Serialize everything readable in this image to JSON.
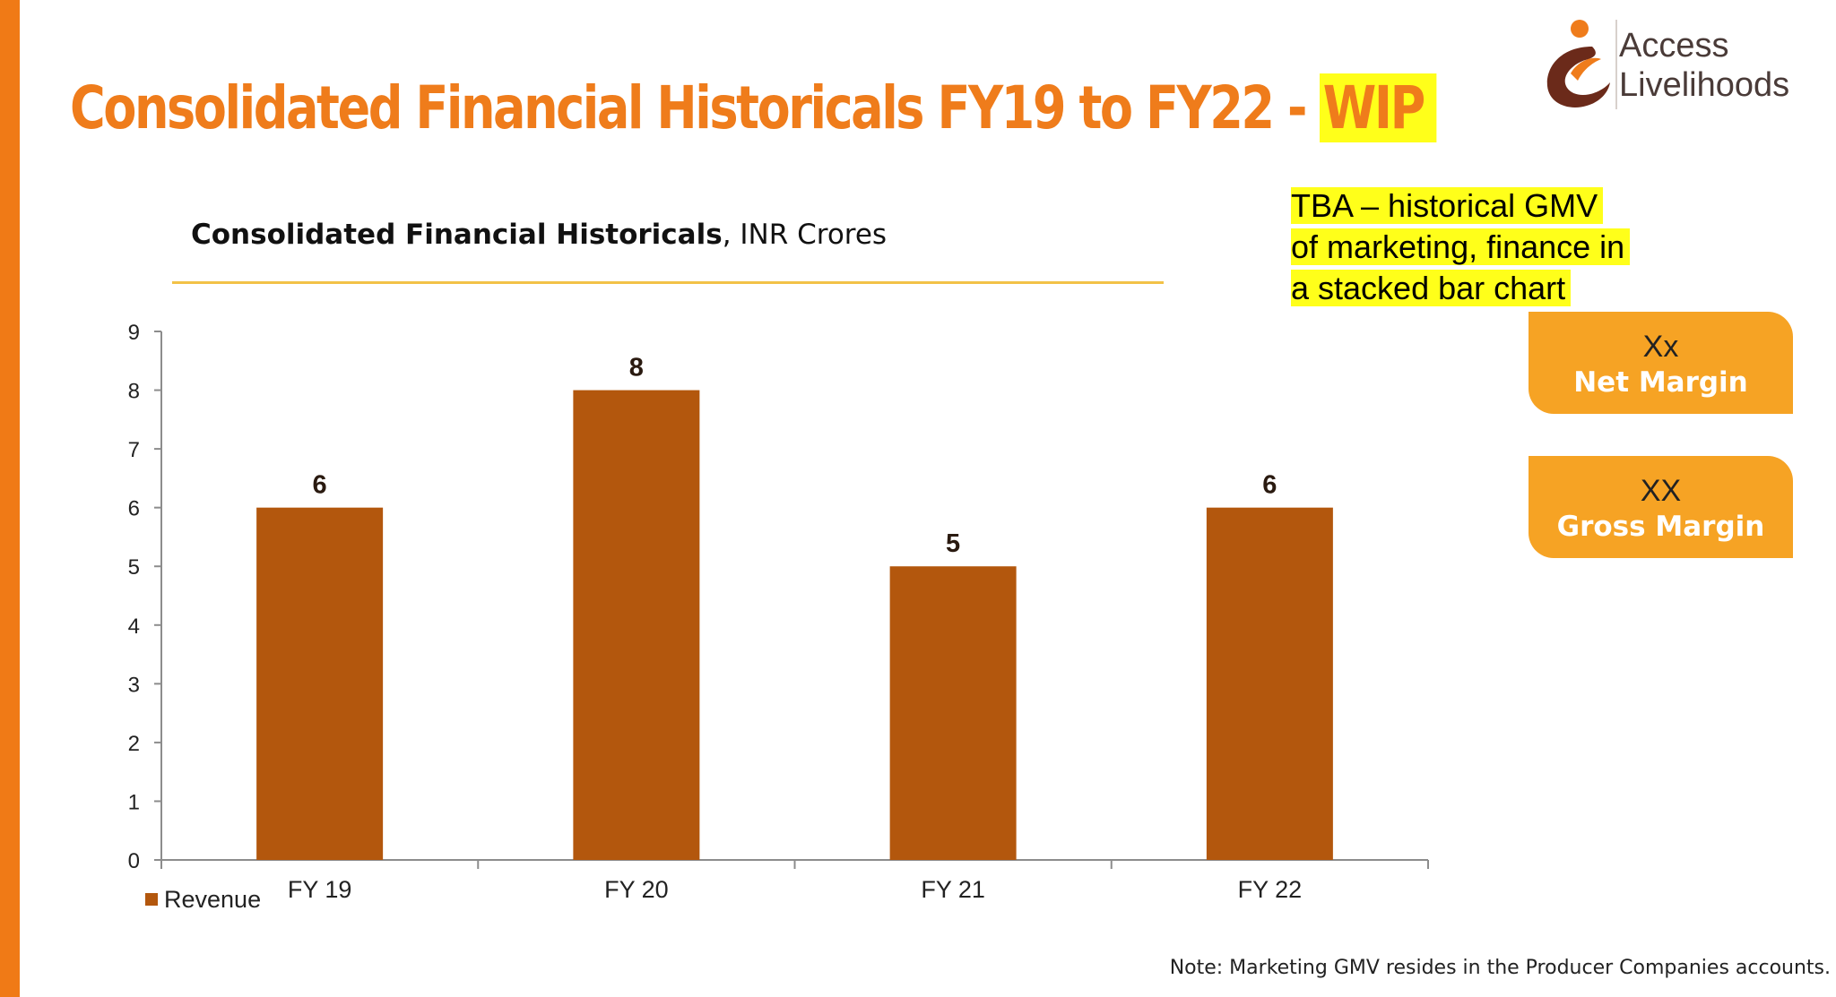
{
  "slide": {
    "title_main": "Consolidated Financial Historicals FY19 to FY22 - ",
    "title_highlight": "WIP"
  },
  "logo": {
    "line1": "Access",
    "line2": "Livelihoods",
    "colors": {
      "mark_brown": "#6b2a1a",
      "mark_orange": "#ef7c1b",
      "text": "#4a3b38"
    }
  },
  "chart_header": {
    "title_bold": "Consolidated Financial Historicals",
    "title_rest": ", INR Crores"
  },
  "chart_data": {
    "type": "bar",
    "title": "Consolidated Financial Historicals, INR Crores",
    "categories": [
      "FY 19",
      "FY 20",
      "FY 21",
      "FY 22"
    ],
    "series": [
      {
        "name": "Revenue",
        "values": [
          6,
          8,
          5,
          6
        ],
        "color": "#b3570d"
      }
    ],
    "data_labels": [
      "6",
      "8",
      "5",
      "6"
    ],
    "ylim": [
      0,
      9
    ],
    "yticks": [
      0,
      1,
      2,
      3,
      4,
      5,
      6,
      7,
      8,
      9
    ],
    "grid": false,
    "legend": "bottom-left",
    "xlabel": "",
    "ylabel": ""
  },
  "annotation": {
    "line1": "TBA – historical GMV",
    "line2": "of marketing, finance in",
    "line3": "a stacked bar chart"
  },
  "metrics": [
    {
      "value": "Xx",
      "label": "Net Margin"
    },
    {
      "value": "XX",
      "label": "Gross Margin"
    }
  ],
  "note": "Note: Marketing GMV resides in the Producer Companies accounts.",
  "colors": {
    "accent_orange": "#ef7c1b",
    "highlight_yellow": "#ffff1a",
    "card_orange": "#f6a324",
    "bar_brown": "#b3570d"
  }
}
